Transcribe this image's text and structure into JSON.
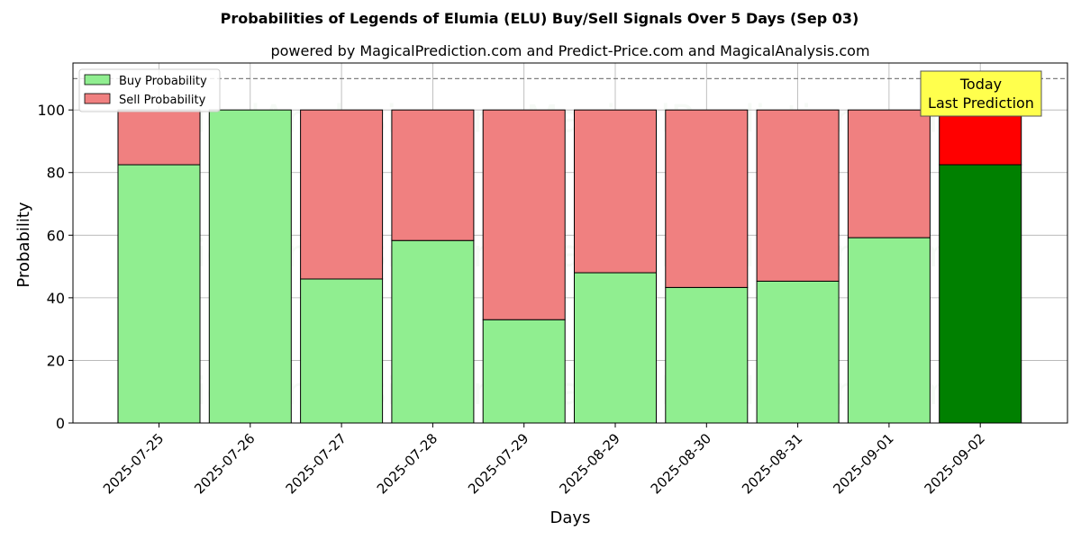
{
  "chart_data": {
    "type": "bar",
    "stacked": true,
    "title": "Probabilities of Legends of Elumia (ELU) Buy/Sell Signals Over 5 Days (Sep 03)",
    "subtitle": "powered by MagicalPrediction.com and Predict-Price.com and MagicalAnalysis.com",
    "xlabel": "Days",
    "ylabel": "Probability",
    "ylim": [
      0,
      115
    ],
    "yticks": [
      0,
      20,
      40,
      60,
      80,
      100
    ],
    "grid": true,
    "legend_position": "top-left",
    "reference_line": 110,
    "categories": [
      "2025-07-25",
      "2025-07-26",
      "2025-07-27",
      "2025-07-28",
      "2025-07-29",
      "2025-08-29",
      "2025-08-30",
      "2025-08-31",
      "2025-09-01",
      "2025-09-02"
    ],
    "series": [
      {
        "name": "Buy Probability",
        "values": [
          82.5,
          100,
          46,
          58.3,
          33,
          48,
          43.3,
          45.3,
          59.2,
          82.5
        ],
        "color": "#90ee90",
        "highlight_color": "#008000"
      },
      {
        "name": "Sell Probability",
        "values": [
          17.5,
          0,
          54,
          41.7,
          67,
          52,
          56.7,
          54.7,
          40.8,
          17.5
        ],
        "color": "#f08080",
        "highlight_color": "#ff0000"
      }
    ],
    "highlight_index": 9,
    "annotation": {
      "line1": "Today",
      "line2": "Last Prediction",
      "color": "#ffff4d"
    },
    "watermarks": [
      "MagicalAnalysis.com",
      "MagicalPrediction.com"
    ]
  }
}
